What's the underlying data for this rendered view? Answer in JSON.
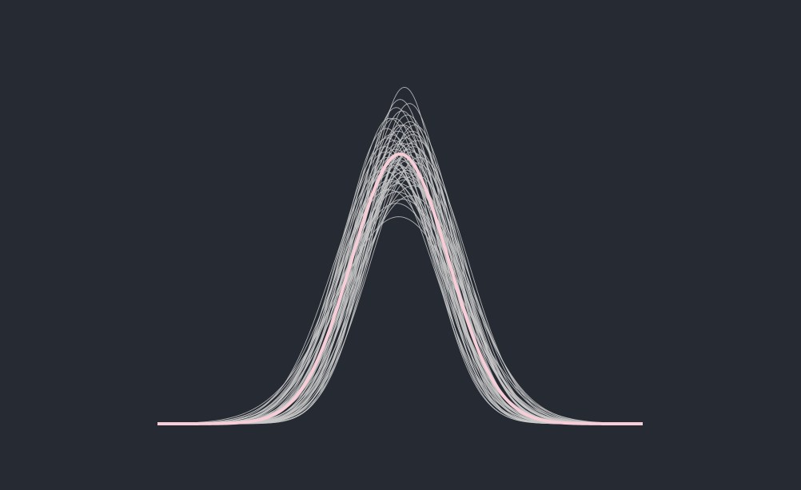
{
  "colors": {
    "background": "#262a33",
    "sample_curves": "#c8c8c8",
    "mean_curve": "#f7cdd7"
  },
  "chart_data": {
    "type": "line",
    "title": "",
    "xlabel": "",
    "ylabel": "",
    "axes_visible": false,
    "grid": false,
    "legend": "none",
    "xlim": [
      -5,
      5
    ],
    "ylim": [
      0,
      0.6
    ],
    "description_of_curves": "density",
    "mean_curve": {
      "mu": 0,
      "sigma": 1,
      "peak": 0.4
    },
    "sample_curves": [
      {
        "mu": -0.05,
        "sigma": 0.96,
        "peak": 0.415
      },
      {
        "mu": 0.1,
        "sigma": 1.05,
        "peak": 0.38
      },
      {
        "mu": -0.2,
        "sigma": 1.1,
        "peak": 0.362
      },
      {
        "mu": 0.25,
        "sigma": 0.92,
        "peak": 0.434
      },
      {
        "mu": -0.12,
        "sigma": 0.88,
        "peak": 0.453
      },
      {
        "mu": 0.05,
        "sigma": 1.2,
        "peak": 0.333
      },
      {
        "mu": 0.18,
        "sigma": 1.02,
        "peak": 0.391
      },
      {
        "mu": -0.3,
        "sigma": 0.99,
        "peak": 0.403
      },
      {
        "mu": 0.32,
        "sigma": 1.08,
        "peak": 0.369
      },
      {
        "mu": -0.08,
        "sigma": 0.85,
        "peak": 0.469
      },
      {
        "mu": 0.12,
        "sigma": 0.94,
        "peak": 0.424
      },
      {
        "mu": -0.22,
        "sigma": 1.15,
        "peak": 0.347
      },
      {
        "mu": 0.02,
        "sigma": 1.0,
        "peak": 0.399
      },
      {
        "mu": 0.28,
        "sigma": 0.97,
        "peak": 0.411
      },
      {
        "mu": -0.15,
        "sigma": 1.03,
        "peak": 0.387
      },
      {
        "mu": 0.08,
        "sigma": 0.9,
        "peak": 0.443
      },
      {
        "mu": -0.35,
        "sigma": 1.06,
        "peak": 0.376
      },
      {
        "mu": 0.4,
        "sigma": 1.01,
        "peak": 0.395
      },
      {
        "mu": -0.02,
        "sigma": 1.12,
        "peak": 0.356
      },
      {
        "mu": 0.15,
        "sigma": 0.87,
        "peak": 0.458
      },
      {
        "mu": -0.18,
        "sigma": 0.93,
        "peak": 0.429
      },
      {
        "mu": 0.22,
        "sigma": 1.18,
        "peak": 0.338
      },
      {
        "mu": -0.05,
        "sigma": 1.04,
        "peak": 0.384
      },
      {
        "mu": 0.35,
        "sigma": 0.95,
        "peak": 0.42
      },
      {
        "mu": -0.28,
        "sigma": 0.91,
        "peak": 0.438
      },
      {
        "mu": 0.0,
        "sigma": 0.83,
        "peak": 0.481
      },
      {
        "mu": 0.1,
        "sigma": 1.09,
        "peak": 0.366
      },
      {
        "mu": -0.1,
        "sigma": 0.98,
        "peak": 0.407
      },
      {
        "mu": 0.2,
        "sigma": 0.89,
        "peak": 0.448
      },
      {
        "mu": -0.25,
        "sigma": 1.01,
        "peak": 0.395
      },
      {
        "mu": 0.06,
        "sigma": 0.96,
        "peak": 0.416
      },
      {
        "mu": -0.14,
        "sigma": 1.07,
        "peak": 0.373
      },
      {
        "mu": 0.27,
        "sigma": 1.13,
        "peak": 0.353
      },
      {
        "mu": -0.04,
        "sigma": 0.92,
        "peak": 0.434
      },
      {
        "mu": 0.14,
        "sigma": 1.0,
        "peak": 0.399
      },
      {
        "mu": -0.32,
        "sigma": 0.97,
        "peak": 0.411
      },
      {
        "mu": 0.3,
        "sigma": 0.9,
        "peak": 0.443
      },
      {
        "mu": -0.08,
        "sigma": 1.22,
        "peak": 0.327
      },
      {
        "mu": 0.04,
        "sigma": 0.86,
        "peak": 0.464
      },
      {
        "mu": -0.18,
        "sigma": 1.05,
        "peak": 0.38
      },
      {
        "mu": 0.24,
        "sigma": 0.99,
        "peak": 0.403
      },
      {
        "mu": -0.01,
        "sigma": 1.02,
        "peak": 0.391
      },
      {
        "mu": 0.11,
        "sigma": 1.1,
        "peak": 0.362
      },
      {
        "mu": -0.26,
        "sigma": 0.94,
        "peak": 0.424
      },
      {
        "mu": 0.19,
        "sigma": 0.84,
        "peak": 0.475
      },
      {
        "mu": -0.06,
        "sigma": 1.16,
        "peak": 0.344
      },
      {
        "mu": 0.33,
        "sigma": 1.03,
        "peak": 0.387
      },
      {
        "mu": -0.12,
        "sigma": 0.95,
        "peak": 0.42
      },
      {
        "mu": 0.07,
        "sigma": 1.07,
        "peak": 0.373
      },
      {
        "mu": -0.21,
        "sigma": 0.88,
        "peak": 0.453
      },
      {
        "mu": 0.16,
        "sigma": 0.98,
        "peak": 0.407
      },
      {
        "mu": -0.03,
        "sigma": 1.3,
        "peak": 0.307
      },
      {
        "mu": 0.09,
        "sigma": 0.8,
        "peak": 0.499
      },
      {
        "mu": -0.16,
        "sigma": 1.11,
        "peak": 0.359
      },
      {
        "mu": 0.26,
        "sigma": 0.93,
        "peak": 0.429
      },
      {
        "mu": -0.09,
        "sigma": 1.0,
        "peak": 0.399
      },
      {
        "mu": 0.01,
        "sigma": 0.9,
        "peak": 0.443
      },
      {
        "mu": 0.13,
        "sigma": 1.06,
        "peak": 0.376
      },
      {
        "mu": -0.23,
        "sigma": 1.04,
        "peak": 0.384
      },
      {
        "mu": 0.21,
        "sigma": 0.96,
        "peak": 0.416
      }
    ]
  }
}
